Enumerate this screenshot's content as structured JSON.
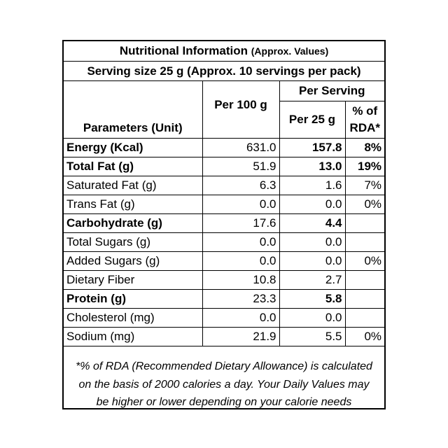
{
  "title": "Nutritional Information",
  "title_note": "(Approx. Values)",
  "serving_size": "Serving size 25 g (Approx. 10 servings per pack)",
  "headers": {
    "parameters": "Parameters (Unit)",
    "per_100g": "Per 100 g",
    "per_serving": "Per Serving",
    "per_25g": "Per 25 g",
    "rda_line1": "% of",
    "rda_line2": "RDA*"
  },
  "rows": [
    {
      "name": "Energy (Kcal)",
      "per100": "631.0",
      "per25": "157.8",
      "rda": "8%"
    },
    {
      "name": "Total Fat (g)",
      "per100": "51.9",
      "per25": "13.0",
      "rda": "19%"
    },
    {
      "name": "Saturated Fat (g)",
      "per100": "6.3",
      "per25": "1.6",
      "rda": "7%"
    },
    {
      "name": "Trans Fat (g)",
      "per100": "0.0",
      "per25": "0.0",
      "rda": "0%"
    },
    {
      "name": "Carbohydrate (g)",
      "per100": "17.6",
      "per25": "4.4",
      "rda": ""
    },
    {
      "name": "Total Sugars (g)",
      "per100": "0.0",
      "per25": "0.0",
      "rda": ""
    },
    {
      "name": "Added Sugars (g)",
      "per100": "0.0",
      "per25": "0.0",
      "rda": "0%"
    },
    {
      "name": "Dietary Fiber",
      "per100": "10.8",
      "per25": "2.7",
      "rda": ""
    },
    {
      "name": "Protein (g)",
      "per100": "23.3",
      "per25": "5.8",
      "rda": ""
    },
    {
      "name": "Cholesterol (mg)",
      "per100": "0.0",
      "per25": "0.0",
      "rda": ""
    },
    {
      "name": "Sodium (mg)",
      "per100": "21.9",
      "per25": "5.5",
      "rda": "0%"
    }
  ],
  "footnote": {
    "line1": "*% of RDA (Recommended Dietary Allowance) is calculated",
    "line2": "on the basis of 2000 calories a day. Your Daily Values may",
    "line3": "be higher or lower depending on your calorie needs"
  }
}
